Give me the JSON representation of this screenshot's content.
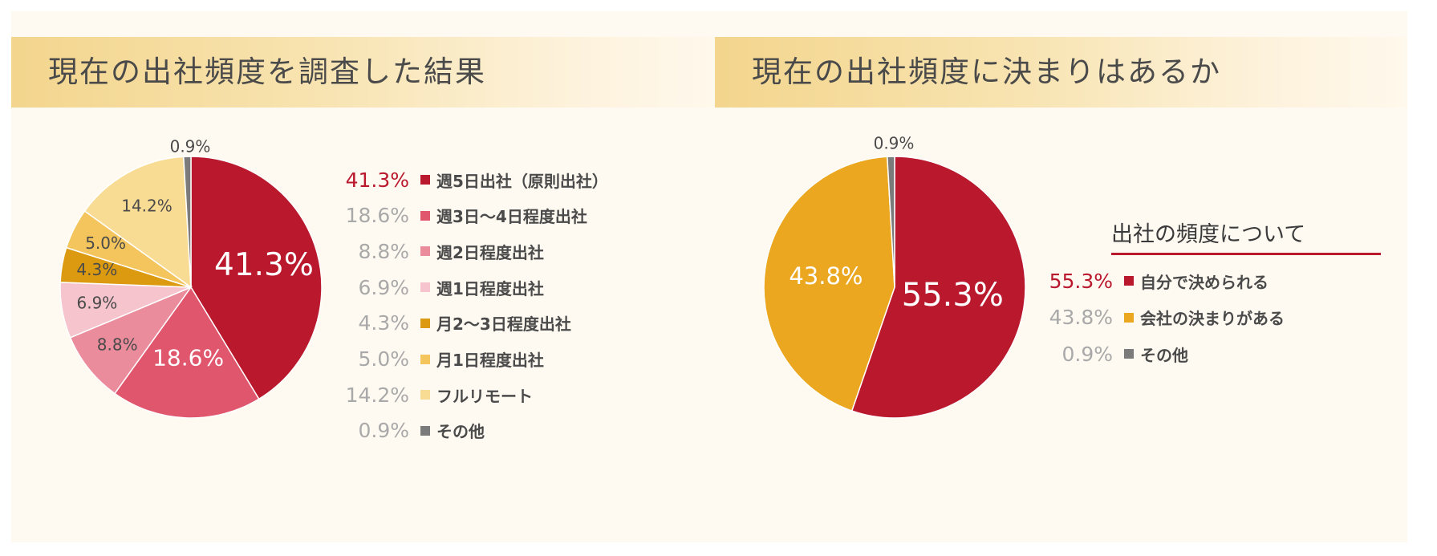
{
  "colors": {
    "accent": "#b9182d",
    "muted_pct": "#a9a9a9"
  },
  "chart_data": [
    {
      "type": "pie",
      "title": "現在の出社頻度を調査した結果",
      "slices": [
        {
          "label": "週5日出社（原則出社）",
          "value": 41.3,
          "display": "41.3%",
          "color": "#b9182d",
          "text_color": "#ffffff"
        },
        {
          "label": "週3日〜4日程度出社",
          "value": 18.6,
          "display": "18.6%",
          "color": "#e0566d",
          "text_color": "#ffffff"
        },
        {
          "label": "週2日程度出社",
          "value": 8.8,
          "display": "8.8%",
          "color": "#ea8c9c",
          "text_color": "#4a4a4a"
        },
        {
          "label": "週1日程度出社",
          "value": 6.9,
          "display": "6.9%",
          "color": "#f6c4cd",
          "text_color": "#4a4a4a"
        },
        {
          "label": "月2〜3日程度出社",
          "value": 4.3,
          "display": "4.3%",
          "color": "#dc9a10",
          "text_color": "#4a4a4a"
        },
        {
          "label": "月1日程度出社",
          "value": 5.0,
          "display": "5.0%",
          "color": "#f3c55c",
          "text_color": "#4a4a4a"
        },
        {
          "label": "フルリモート",
          "value": 14.2,
          "display": "14.2%",
          "color": "#f9dc94",
          "text_color": "#4a4a4a"
        },
        {
          "label": "その他",
          "value": 0.9,
          "display": "0.9%",
          "color": "#7b7b7b",
          "text_color": "#4a4a4a"
        }
      ]
    },
    {
      "type": "pie",
      "title": "現在の出社頻度に決まりはあるか",
      "legend_title": "出社の頻度について",
      "slices": [
        {
          "label": "自分で決められる",
          "value": 55.3,
          "display": "55.3%",
          "color": "#b9182d",
          "text_color": "#ffffff"
        },
        {
          "label": "会社の決まりがある",
          "value": 43.8,
          "display": "43.8%",
          "color": "#eaa71f",
          "text_color": "#ffffff"
        },
        {
          "label": "その他",
          "value": 0.9,
          "display": "0.9%",
          "color": "#7b7b7b",
          "text_color": "#4a4a4a"
        }
      ]
    }
  ]
}
